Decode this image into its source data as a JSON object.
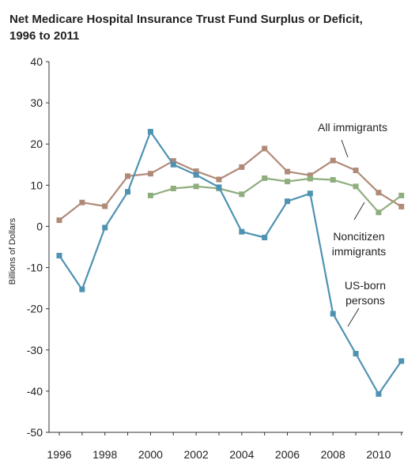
{
  "title_line1": "Net Medicare Hospital Insurance Trust Fund Surplus or Deficit,",
  "title_line2": "1996 to 2011",
  "chart_data": {
    "type": "line",
    "title": "Net Medicare Hospital Insurance Trust Fund Surplus or Deficit, 1996 to 2011",
    "ylabel": "Billions of Dollars",
    "xlabel": "",
    "xlim": [
      1996,
      2011
    ],
    "ylim": [
      -50,
      40
    ],
    "x_ticks": [
      1996,
      1998,
      2000,
      2002,
      2004,
      2006,
      2008,
      2010
    ],
    "y_ticks": [
      40,
      30,
      20,
      10,
      0,
      -10,
      -20,
      -30,
      -40,
      -50
    ],
    "grid": false,
    "series": [
      {
        "name": "All immigrants",
        "color": "#b08a78",
        "x": [
          1996,
          1997,
          1998,
          1999,
          2000,
          2001,
          2002,
          2003,
          2004,
          2005,
          2006,
          2007,
          2008,
          2009,
          2010,
          2011
        ],
        "y": [
          1.5,
          5.8,
          4.9,
          12.2,
          12.8,
          15.9,
          13.4,
          11.4,
          14.4,
          18.9,
          13.3,
          12.4,
          16.0,
          13.6,
          8.2,
          4.8
        ]
      },
      {
        "name": "Noncitizen immigrants",
        "color": "#8fae7e",
        "x": [
          2000,
          2001,
          2002,
          2003,
          2004,
          2005,
          2006,
          2007,
          2008,
          2009,
          2010,
          2011
        ],
        "y": [
          7.5,
          9.2,
          9.7,
          9.2,
          7.8,
          11.7,
          10.9,
          11.6,
          11.3,
          9.7,
          3.4,
          7.5
        ]
      },
      {
        "name": "US-born persons",
        "color": "#4f92b2",
        "x": [
          1996,
          1997,
          1998,
          1999,
          2000,
          2001,
          2002,
          2003,
          2004,
          2005,
          2006,
          2007,
          2008,
          2009,
          2010,
          2011
        ],
        "y": [
          -7.1,
          -15.3,
          -0.3,
          8.4,
          23.0,
          15.0,
          12.5,
          9.5,
          -1.3,
          -2.7,
          6.1,
          8.0,
          -21.2,
          -30.9,
          -40.7,
          -32.7
        ]
      }
    ],
    "annotations": [
      {
        "lines": [
          "All immigrants"
        ],
        "target": "All immigrants"
      },
      {
        "lines": [
          "Noncitizen",
          "immigrants"
        ],
        "target": "Noncitizen immigrants"
      },
      {
        "lines": [
          "US-born",
          "persons"
        ],
        "target": "US-born persons"
      }
    ]
  }
}
